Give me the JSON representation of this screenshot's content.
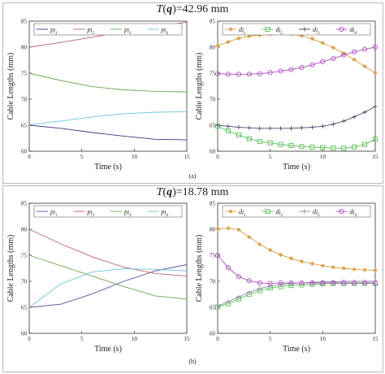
{
  "sections": [
    {
      "title_prefix": "T",
      "title_var": "q",
      "title_suffix": ")=42.96 mm",
      "caption": "(a)"
    },
    {
      "title_prefix": "T",
      "title_var": "q",
      "title_suffix": ")=18.78 mm",
      "caption": "(b)"
    }
  ],
  "chart_data": [
    {
      "type": "line",
      "title": "",
      "xlabel": "Time (s)",
      "ylabel": "Cable Lengths (mm)",
      "xlim": [
        0,
        15
      ],
      "ylim": [
        60,
        85
      ],
      "xticks": [
        0,
        5,
        10,
        15
      ],
      "yticks": [
        60,
        65,
        70,
        75,
        80,
        85
      ],
      "x": [
        0,
        3,
        6,
        9,
        12,
        15
      ],
      "series": [
        {
          "name_main": "p",
          "name_sub": "l",
          "name_index": "1",
          "color": "#3a3a8a",
          "marker": "none",
          "values": [
            65.0,
            64.4,
            63.6,
            62.9,
            62.3,
            62.2
          ]
        },
        {
          "name_main": "p",
          "name_sub": "l",
          "name_index": "2",
          "color": "#c06464",
          "marker": "none",
          "values": [
            80.0,
            80.9,
            81.9,
            83.0,
            83.9,
            84.8
          ]
        },
        {
          "name_main": "p",
          "name_sub": "l",
          "name_index": "3",
          "color": "#6aa84f",
          "marker": "none",
          "values": [
            75.0,
            73.6,
            72.4,
            71.8,
            71.5,
            71.4
          ]
        },
        {
          "name_main": "p",
          "name_sub": "l",
          "name_index": "4",
          "color": "#66c8d8",
          "marker": "none",
          "values": [
            65.1,
            65.8,
            66.6,
            67.2,
            67.5,
            67.6
          ]
        }
      ],
      "legend": "top"
    },
    {
      "type": "line",
      "title": "",
      "xlabel": "Time (s)",
      "ylabel": "Cable Lengths (mm)",
      "xlim": [
        0,
        15
      ],
      "ylim": [
        60,
        85
      ],
      "xticks": [
        0,
        5,
        10,
        15
      ],
      "yticks": [
        60,
        65,
        70,
        75,
        80,
        85
      ],
      "x": [
        0,
        1,
        2,
        3,
        4,
        5,
        6,
        7,
        8,
        9,
        10,
        11,
        12,
        13,
        14,
        15
      ],
      "series": [
        {
          "name_main": "d",
          "name_sub": "l",
          "name_index": "1",
          "color": "#d79a3c",
          "marker": "star",
          "values": [
            80.3,
            81.0,
            81.7,
            82.1,
            82.3,
            82.5,
            82.6,
            82.5,
            82.2,
            81.6,
            80.8,
            79.9,
            78.8,
            77.6,
            76.3,
            75.1
          ]
        },
        {
          "name_main": "d",
          "name_sub": "l",
          "name_index": "2",
          "color": "#5bbf5b",
          "marker": "square",
          "values": [
            64.8,
            63.9,
            63.1,
            62.4,
            61.9,
            61.6,
            61.3,
            61.1,
            60.9,
            60.8,
            60.7,
            60.6,
            60.6,
            60.8,
            61.3,
            62.3
          ]
        },
        {
          "name_main": "d",
          "name_sub": "l",
          "name_index": "3",
          "color": "#4a4a6a",
          "marker": "plus",
          "values": [
            65.0,
            64.8,
            64.6,
            64.5,
            64.4,
            64.4,
            64.4,
            64.4,
            64.5,
            64.6,
            64.8,
            65.2,
            65.8,
            66.6,
            67.5,
            68.6
          ]
        },
        {
          "name_main": "d",
          "name_sub": "l",
          "name_index": "4",
          "color": "#b04fc0",
          "marker": "circle",
          "values": [
            74.9,
            74.8,
            74.8,
            74.8,
            74.9,
            75.1,
            75.4,
            75.7,
            76.1,
            76.6,
            77.2,
            77.8,
            78.5,
            79.1,
            79.6,
            80.0
          ]
        }
      ],
      "legend": "top"
    },
    {
      "type": "line",
      "title": "",
      "xlabel": "Time (s)",
      "ylabel": "Cable Lengths (mm)",
      "xlim": [
        0,
        15
      ],
      "ylim": [
        60,
        85
      ],
      "xticks": [
        0,
        5,
        10,
        15
      ],
      "yticks": [
        60,
        65,
        70,
        75,
        80,
        85
      ],
      "x": [
        0,
        3,
        6,
        9,
        12,
        15
      ],
      "series": [
        {
          "name_main": "p",
          "name_sub": "l",
          "name_index": "1",
          "color": "#5a4f9a",
          "marker": "none",
          "values": [
            65.0,
            65.6,
            67.6,
            70.0,
            72.0,
            73.2
          ]
        },
        {
          "name_main": "p",
          "name_sub": "l",
          "name_index": "2",
          "color": "#c06464",
          "marker": "none",
          "values": [
            80.0,
            77.2,
            74.7,
            72.7,
            71.5,
            71.0
          ]
        },
        {
          "name_main": "p",
          "name_sub": "l",
          "name_index": "3",
          "color": "#6aa84f",
          "marker": "none",
          "values": [
            75.0,
            73.0,
            71.0,
            69.0,
            67.2,
            66.6
          ]
        },
        {
          "name_main": "p",
          "name_sub": "l",
          "name_index": "4",
          "color": "#66c8d8",
          "marker": "none",
          "values": [
            65.0,
            69.5,
            71.8,
            72.4,
            72.3,
            72.0
          ]
        }
      ],
      "legend": "top"
    },
    {
      "type": "line",
      "title": "",
      "xlabel": "Time (s)",
      "ylabel": "Cable Lengths (mm)",
      "xlim": [
        0,
        15
      ],
      "ylim": [
        60,
        85
      ],
      "xticks": [
        0,
        5,
        10,
        15
      ],
      "yticks": [
        60,
        65,
        70,
        75,
        80,
        85
      ],
      "x": [
        0,
        1,
        2,
        3,
        4,
        5,
        6,
        7,
        8,
        9,
        10,
        11,
        12,
        13,
        14,
        15
      ],
      "series": [
        {
          "name_main": "d",
          "name_sub": "l",
          "name_index": "1",
          "color": "#d79a3c",
          "marker": "star",
          "values": [
            80.1,
            80.2,
            79.9,
            78.5,
            77.1,
            76.0,
            75.1,
            74.4,
            73.8,
            73.4,
            73.0,
            72.7,
            72.5,
            72.3,
            72.2,
            72.1
          ]
        },
        {
          "name_main": "d",
          "name_sub": "l",
          "name_index": "2",
          "color": "#5bbf5b",
          "marker": "square",
          "values": [
            65.1,
            65.7,
            66.6,
            67.5,
            68.2,
            68.7,
            69.0,
            69.2,
            69.3,
            69.4,
            69.5,
            69.6,
            69.6,
            69.6,
            69.6,
            69.6
          ]
        },
        {
          "name_main": "d",
          "name_sub": "l",
          "name_index": "3",
          "color": "#8a8aa8",
          "marker": "plus",
          "values": [
            65.2,
            66.1,
            67.0,
            67.9,
            68.6,
            69.1,
            69.4,
            69.6,
            69.7,
            69.8,
            69.9,
            69.9,
            70.0,
            70.0,
            70.0,
            70.0
          ]
        },
        {
          "name_main": "d",
          "name_sub": "l",
          "name_index": "4",
          "color": "#b04fc0",
          "marker": "circle",
          "values": [
            75.0,
            72.6,
            70.9,
            70.1,
            69.7,
            69.6,
            69.7,
            69.7,
            69.7,
            69.7,
            69.7,
            69.7,
            69.7,
            69.7,
            69.7,
            69.7
          ]
        }
      ],
      "legend": "top"
    }
  ]
}
